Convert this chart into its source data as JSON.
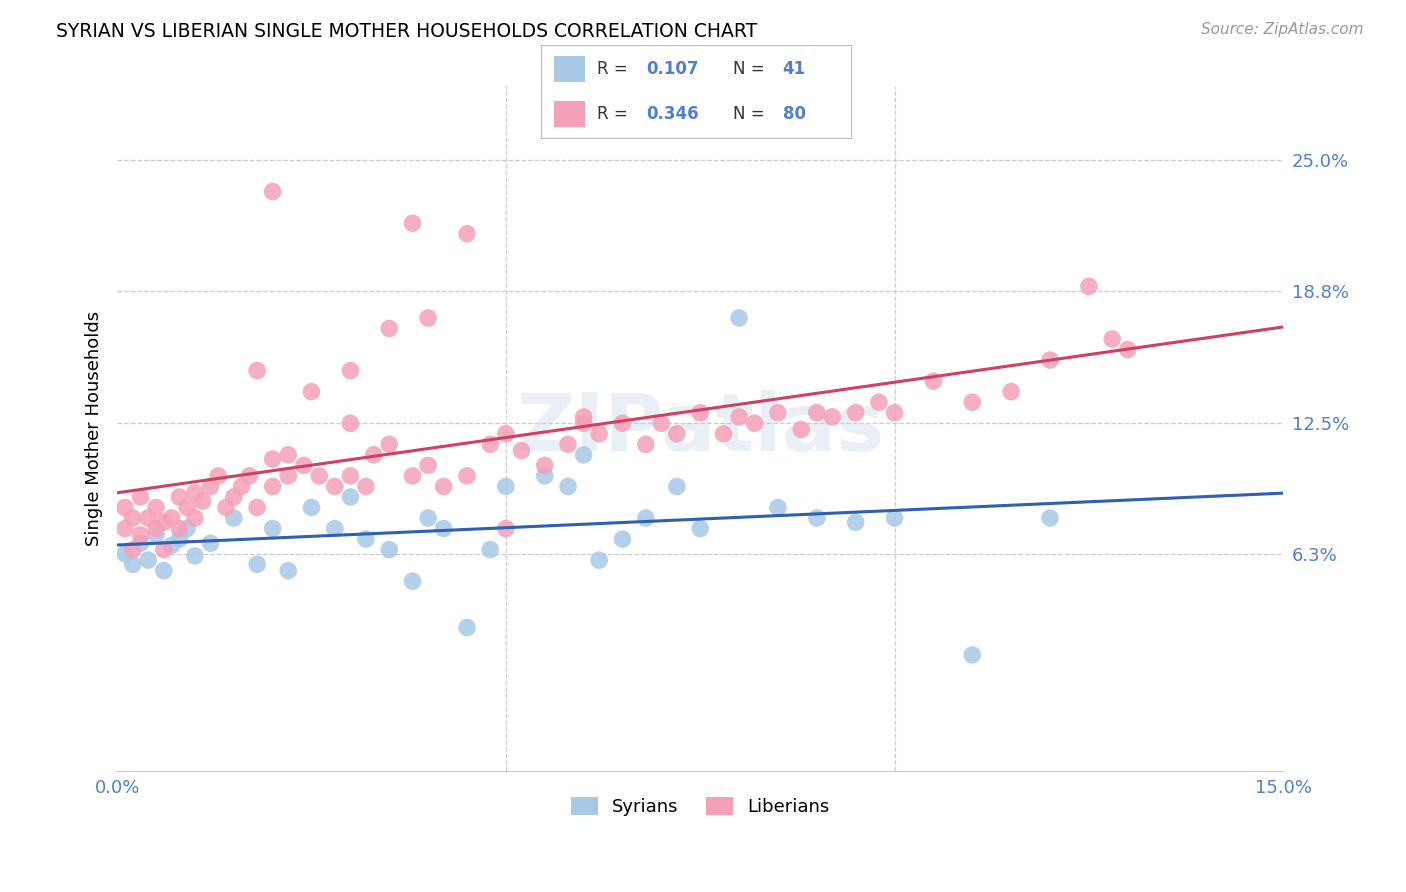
{
  "title": "SYRIAN VS LIBERIAN SINGLE MOTHER HOUSEHOLDS CORRELATION CHART",
  "source": "Source: ZipAtlas.com",
  "ylabel_label": "Single Mother Households",
  "xlim": [
    0.0,
    0.15
  ],
  "ylim": [
    -0.04,
    0.285
  ],
  "syrian_color": "#a8c8e8",
  "liberian_color": "#f4a0b8",
  "syrian_line_color": "#3060b0",
  "liberian_line_color": "#d04060",
  "syrian_R": 0.107,
  "syrian_N": 41,
  "liberian_R": 0.346,
  "liberian_N": 80,
  "watermark": "ZIPatlas",
  "background_color": "#ffffff",
  "grid_color": "#cccccc",
  "tick_label_color": "#5080c8",
  "ytick_vals": [
    0.063,
    0.125,
    0.188,
    0.25
  ],
  "ytick_labels": [
    "6.3%",
    "12.5%",
    "18.8%",
    "25.0%"
  ],
  "xtick_vals": [
    0.0,
    0.15
  ],
  "xtick_labels": [
    "0.0%",
    "15.0%"
  ],
  "syrians_x": [
    0.001,
    0.002,
    0.003,
    0.004,
    0.005,
    0.006,
    0.007,
    0.008,
    0.009,
    0.01,
    0.012,
    0.015,
    0.018,
    0.02,
    0.022,
    0.025,
    0.028,
    0.03,
    0.032,
    0.035,
    0.038,
    0.04,
    0.042,
    0.045,
    0.048,
    0.05,
    0.055,
    0.058,
    0.06,
    0.062,
    0.065,
    0.068,
    0.072,
    0.075,
    0.08,
    0.085,
    0.09,
    0.095,
    0.1,
    0.11,
    0.12
  ],
  "syrians_y": [
    0.063,
    0.058,
    0.068,
    0.06,
    0.072,
    0.055,
    0.067,
    0.07,
    0.075,
    0.062,
    0.068,
    0.08,
    0.058,
    0.075,
    0.055,
    0.085,
    0.075,
    0.09,
    0.07,
    0.065,
    0.05,
    0.08,
    0.075,
    0.028,
    0.065,
    0.095,
    0.1,
    0.095,
    0.11,
    0.06,
    0.07,
    0.08,
    0.095,
    0.075,
    0.175,
    0.085,
    0.08,
    0.078,
    0.08,
    0.015,
    0.08
  ],
  "liberians_x": [
    0.001,
    0.001,
    0.002,
    0.002,
    0.003,
    0.003,
    0.004,
    0.005,
    0.005,
    0.006,
    0.006,
    0.007,
    0.008,
    0.008,
    0.009,
    0.01,
    0.01,
    0.011,
    0.012,
    0.013,
    0.014,
    0.015,
    0.016,
    0.017,
    0.018,
    0.018,
    0.02,
    0.02,
    0.022,
    0.022,
    0.024,
    0.025,
    0.026,
    0.028,
    0.03,
    0.03,
    0.032,
    0.033,
    0.035,
    0.035,
    0.038,
    0.04,
    0.04,
    0.042,
    0.045,
    0.048,
    0.05,
    0.05,
    0.052,
    0.055,
    0.058,
    0.06,
    0.062,
    0.065,
    0.068,
    0.07,
    0.072,
    0.075,
    0.078,
    0.08,
    0.082,
    0.085,
    0.088,
    0.09,
    0.092,
    0.095,
    0.098,
    0.1,
    0.105,
    0.11,
    0.115,
    0.12,
    0.125,
    0.128,
    0.13,
    0.038,
    0.045,
    0.02,
    0.03,
    0.06
  ],
  "liberians_y": [
    0.075,
    0.085,
    0.08,
    0.065,
    0.09,
    0.072,
    0.08,
    0.075,
    0.085,
    0.065,
    0.078,
    0.08,
    0.09,
    0.075,
    0.085,
    0.08,
    0.092,
    0.088,
    0.095,
    0.1,
    0.085,
    0.09,
    0.095,
    0.1,
    0.085,
    0.15,
    0.095,
    0.108,
    0.1,
    0.11,
    0.105,
    0.14,
    0.1,
    0.095,
    0.1,
    0.15,
    0.095,
    0.11,
    0.115,
    0.17,
    0.1,
    0.105,
    0.175,
    0.095,
    0.1,
    0.115,
    0.12,
    0.075,
    0.112,
    0.105,
    0.115,
    0.125,
    0.12,
    0.125,
    0.115,
    0.125,
    0.12,
    0.13,
    0.12,
    0.128,
    0.125,
    0.13,
    0.122,
    0.13,
    0.128,
    0.13,
    0.135,
    0.13,
    0.145,
    0.135,
    0.14,
    0.155,
    0.19,
    0.165,
    0.16,
    0.22,
    0.215,
    0.235,
    0.125,
    0.128
  ]
}
